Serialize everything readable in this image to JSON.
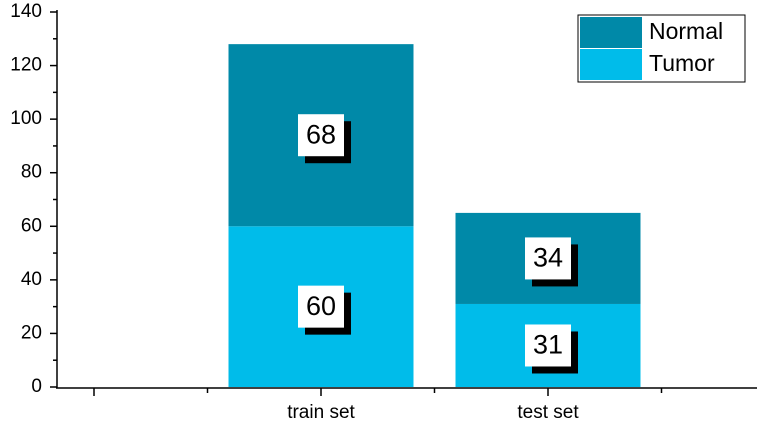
{
  "chart_data": {
    "type": "stacked_bar",
    "categories": [
      null,
      "train set",
      "test set"
    ],
    "series": [
      {
        "name": "Tumor",
        "color": "#00bcea",
        "values": [
          null,
          60,
          31
        ]
      },
      {
        "name": "Normal",
        "color": "#0089a8",
        "values": [
          null,
          68,
          34
        ]
      }
    ],
    "ylim": [
      0,
      140
    ],
    "yticks": [
      0,
      20,
      40,
      60,
      80,
      100,
      120,
      140
    ],
    "grid": false,
    "legend": "top-right"
  }
}
